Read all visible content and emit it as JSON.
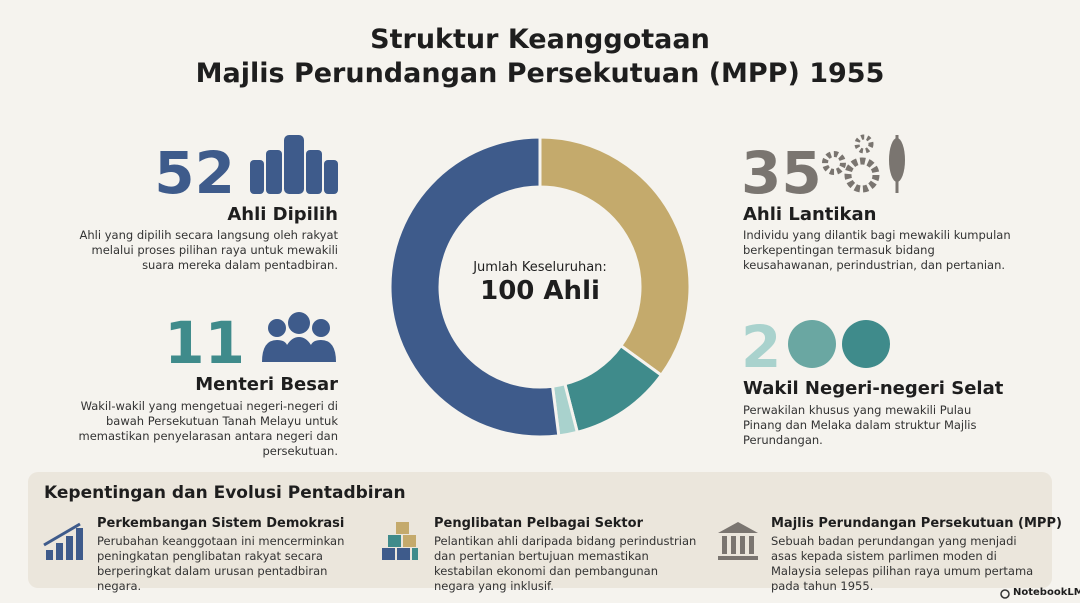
{
  "header": {
    "title_line1": "Struktur Keanggotaan",
    "title_line2": "Majlis Perundangan Persekutuan (MPP) 1955"
  },
  "chart_data": {
    "type": "donut",
    "categories": [
      "Ahli Lantikan",
      "Menteri Besar",
      "Wakil Negeri-negeri Selat",
      "Ahli Dipilih"
    ],
    "values": [
      35,
      11,
      2,
      52
    ],
    "colors": [
      "#c4aa6c",
      "#3f8b8b",
      "#a9d2cd",
      "#3e5b8b"
    ],
    "center_label": "Jumlah Keseluruhan:",
    "center_value": "100 Ahli"
  },
  "descriptions": [
    "Individu yang dilantik bagi mewakili kumpulan berkepentingan termasuk bidang keusahawanan, perindustrian, dan pertanian.",
    "Wakil-wakil yang mengetuai negeri-negeri di bawah Persekutuan Tanah Melayu untuk memastikan penyelarasan antara negeri dan persekutuan.",
    "Perwakilan khusus yang mewakili Pulau Pinang dan Melaka dalam struktur Majlis Perundangan.",
    "Ahli yang dipilih secara langsung oleh rakyat melalui proses pilihan raya untuk mewakili suara mereka dalam pentadbiran."
  ],
  "panel": {
    "title": "Kepentingan dan Evolusi Pentadbiran",
    "items": [
      {
        "title": "Perkembangan Sistem Demokrasi",
        "text": "Perubahan keanggotaan ini mencerminkan peningkatan penglibatan rakyat secara berperingkat dalam urusan pentadbiran negara."
      },
      {
        "title": "Penglibatan Pelbagai Sektor",
        "text": "Pelantikan ahli daripada bidang perindustrian dan pertanian bertujuan memastikan kestabilan ekonomi dan pembangunan negara yang inklusif."
      },
      {
        "title": "Majlis Perundangan Persekutuan (MPP)",
        "text": "Sebuah badan perundangan yang menjadi asas kepada sistem parlimen moden di Malaysia selepas pilihan raya umum pertama pada tahun 1955."
      }
    ]
  },
  "footer": {
    "brand": "NotebookLM"
  }
}
